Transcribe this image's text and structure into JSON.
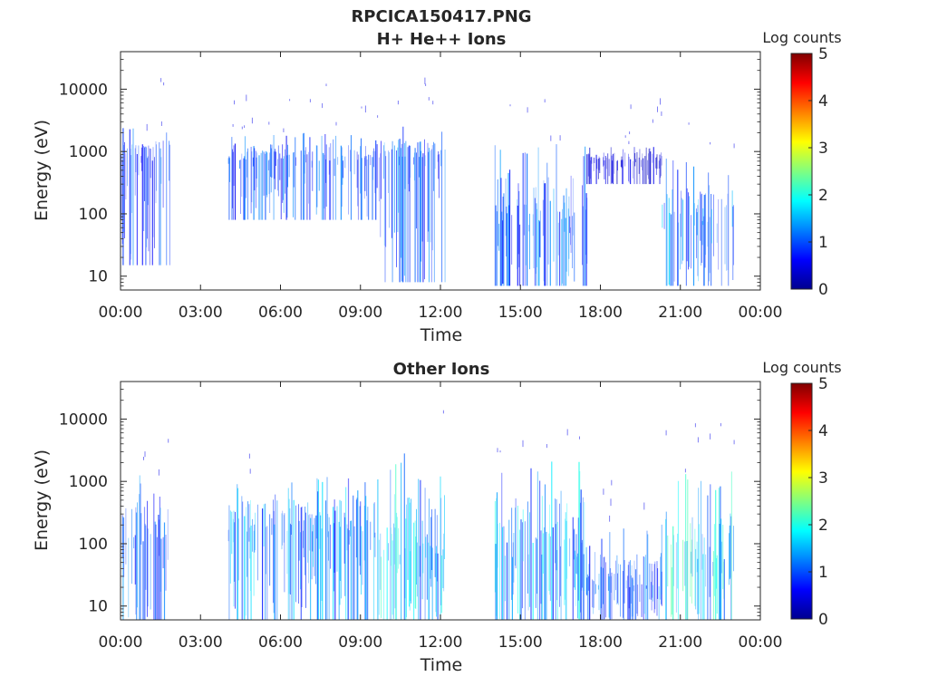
{
  "figure_title": "RPCICA150417.PNG",
  "colors": {
    "axis": "#262626",
    "background": "#ffffff",
    "colormap": [
      "#00008f",
      "#0000ff",
      "#0080ff",
      "#00ffff",
      "#80ff80",
      "#ffff00",
      "#ff8000",
      "#ff0000",
      "#800000"
    ]
  },
  "chart_data": [
    {
      "type": "heatmap",
      "title": "H+ He++ Ions",
      "xlabel": "Time",
      "ylabel": "Energy (eV)",
      "x_ticks": [
        "00:00",
        "03:00",
        "06:00",
        "09:00",
        "12:00",
        "15:00",
        "18:00",
        "21:00",
        "00:00"
      ],
      "xlim_hours": [
        0,
        24
      ],
      "y_ticks": [
        "10",
        "100",
        "1000",
        "10000"
      ],
      "y_tick_values": [
        10,
        100,
        1000,
        10000
      ],
      "ylim": [
        6,
        40000
      ],
      "y_scale": "log",
      "colorbar": {
        "label": "Log counts",
        "ticks": [
          "0",
          "1",
          "2",
          "3",
          "4",
          "5"
        ],
        "range": [
          0,
          5
        ]
      },
      "data_gaps_hours": [
        [
          1.9,
          4.05
        ],
        [
          12.2,
          14.05
        ],
        [
          23.0,
          24.0
        ]
      ],
      "segments": [
        {
          "start_hour": 0.0,
          "end_hour": 1.9,
          "low_energy_eV": 15,
          "peak_energy_eV": 700,
          "high_energy_eV": 2500,
          "max_log_counts": 1.3
        },
        {
          "start_hour": 4.05,
          "end_hour": 9.7,
          "low_energy_eV": 80,
          "peak_energy_eV": 700,
          "high_energy_eV": 2000,
          "max_log_counts": 1.4
        },
        {
          "start_hour": 9.7,
          "end_hour": 12.2,
          "low_energy_eV": 8,
          "peak_energy_eV": 800,
          "high_energy_eV": 2500,
          "max_log_counts": 1.5
        },
        {
          "start_hour": 14.05,
          "end_hour": 17.5,
          "low_energy_eV": 7,
          "peak_energy_eV": 60,
          "high_energy_eV": 1500,
          "max_log_counts": 1.5
        },
        {
          "start_hour": 17.5,
          "end_hour": 20.3,
          "low_energy_eV": 300,
          "peak_energy_eV": 700,
          "high_energy_eV": 1200,
          "max_log_counts": 0.6
        },
        {
          "start_hour": 20.3,
          "end_hour": 23.0,
          "low_energy_eV": 7,
          "peak_energy_eV": 70,
          "high_energy_eV": 800,
          "max_log_counts": 1.7
        }
      ]
    },
    {
      "type": "heatmap",
      "title": "Other Ions",
      "xlabel": "Time",
      "ylabel": "Energy (eV)",
      "x_ticks": [
        "00:00",
        "03:00",
        "06:00",
        "09:00",
        "12:00",
        "15:00",
        "18:00",
        "21:00",
        "00:00"
      ],
      "xlim_hours": [
        0,
        24
      ],
      "y_ticks": [
        "10",
        "100",
        "1000",
        "10000"
      ],
      "y_tick_values": [
        10,
        100,
        1000,
        10000
      ],
      "ylim": [
        6,
        40000
      ],
      "y_scale": "log",
      "colorbar": {
        "label": "Log counts",
        "ticks": [
          "0",
          "1",
          "2",
          "3",
          "4",
          "5"
        ],
        "range": [
          0,
          5
        ]
      },
      "data_gaps_hours": [
        [
          1.9,
          4.05
        ],
        [
          12.2,
          14.05
        ],
        [
          23.0,
          24.0
        ]
      ],
      "segments": [
        {
          "start_hour": 0.0,
          "end_hour": 1.9,
          "low_energy_eV": 6,
          "peak_energy_eV": 100,
          "high_energy_eV": 1500,
          "max_log_counts": 1.5
        },
        {
          "start_hour": 4.05,
          "end_hour": 9.7,
          "low_energy_eV": 6,
          "peak_energy_eV": 150,
          "high_energy_eV": 1200,
          "max_log_counts": 1.8
        },
        {
          "start_hour": 9.7,
          "end_hour": 12.2,
          "low_energy_eV": 6,
          "peak_energy_eV": 60,
          "high_energy_eV": 3000,
          "max_log_counts": 2.2
        },
        {
          "start_hour": 14.05,
          "end_hour": 17.5,
          "low_energy_eV": 6,
          "peak_energy_eV": 60,
          "high_energy_eV": 2500,
          "max_log_counts": 2.0
        },
        {
          "start_hour": 17.5,
          "end_hour": 20.3,
          "low_energy_eV": 6,
          "peak_energy_eV": 20,
          "high_energy_eV": 200,
          "max_log_counts": 1.5
        },
        {
          "start_hour": 20.3,
          "end_hour": 23.0,
          "low_energy_eV": 6,
          "peak_energy_eV": 40,
          "high_energy_eV": 1500,
          "max_log_counts": 2.4
        }
      ]
    }
  ]
}
